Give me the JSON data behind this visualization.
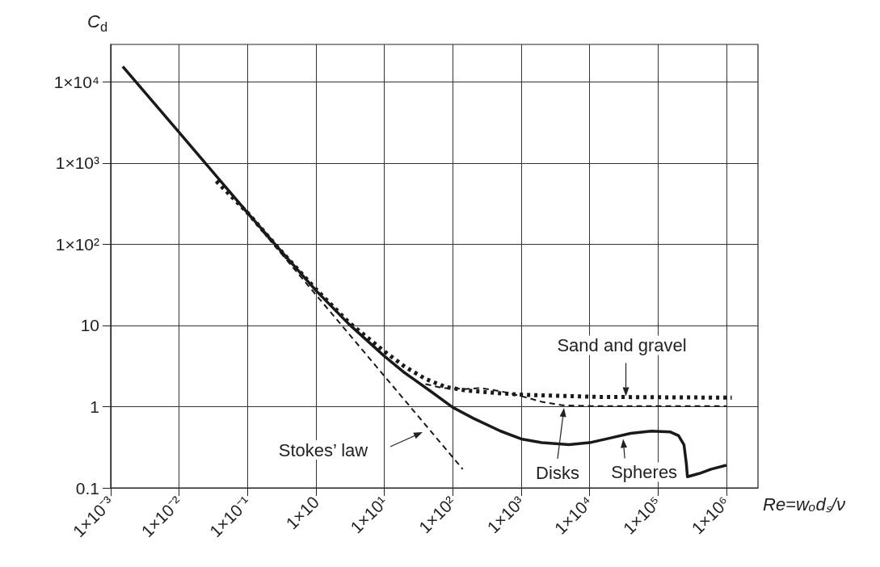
{
  "chart_data": {
    "type": "line",
    "xlabel": "Re=wₒdₛ/ν",
    "ylabel": "C$_{d}$",
    "log": "xy",
    "grid": true,
    "marker": "none",
    "xlim": [
      0.001,
      2900000
    ],
    "ylim": [
      0.1,
      29000
    ],
    "xticks": [
      {
        "value": 0.001,
        "label": "1×10⁻³"
      },
      {
        "value": 0.01,
        "label": "1×10⁻²"
      },
      {
        "value": 0.1,
        "label": "1×10⁻¹"
      },
      {
        "value": 1,
        "label": "1×10"
      },
      {
        "value": 10,
        "label": "1×10¹"
      },
      {
        "value": 100,
        "label": "1×10²"
      },
      {
        "value": 1000,
        "label": "1×10³"
      },
      {
        "value": 10000,
        "label": "1×10⁴"
      },
      {
        "value": 100000,
        "label": "1×10⁵"
      },
      {
        "value": 1000000,
        "label": "1×10⁶"
      }
    ],
    "yticks": [
      0.1,
      1,
      10,
      {
        "value": 100,
        "label": "1×10²"
      },
      {
        "value": 1000,
        "label": "1×10³"
      },
      {
        "value": 10000,
        "label": "1×10⁴"
      }
    ],
    "series": [
      {
        "color": "#1a1a1a",
        "line_style": "dashed",
        "x": [
          0.03,
          140
        ],
        "values": [
          800,
          0.17
        ]
      },
      {
        "color": "#1a1a1a",
        "line_style": "dotted",
        "x": [
          0.035,
          0.1,
          0.3,
          1,
          3,
          10,
          20,
          40,
          80,
          160,
          400,
          1100,
          13500,
          1200000
        ],
        "values": [
          600,
          245,
          85,
          28,
          11,
          4.8,
          3.1,
          2.2,
          1.74,
          1.58,
          1.48,
          1.4,
          1.32,
          1.29
        ]
      },
      {
        "color": "#1a1a1a",
        "line_style": "dashed",
        "x": [
          40,
          70,
          150,
          250,
          500,
          1000,
          2000,
          4000,
          10000,
          1000000
        ],
        "values": [
          1.9,
          1.7,
          1.65,
          1.7,
          1.55,
          1.35,
          1.15,
          1.04,
          1.02,
          1.02
        ]
      },
      {
        "color": "#1a1a1a",
        "line_style": "solid",
        "x": [
          0.0015,
          0.01,
          0.1,
          0.3,
          1,
          3,
          10,
          20,
          50,
          100,
          200,
          500,
          1000,
          2000,
          5000,
          10000,
          20000,
          40000,
          80000,
          150000,
          200000,
          240000,
          260000,
          270000,
          400000,
          600000,
          1000000
        ],
        "values": [
          15500,
          2400,
          245,
          85,
          27,
          10.5,
          4.2,
          2.6,
          1.5,
          0.98,
          0.72,
          0.5,
          0.4,
          0.36,
          0.34,
          0.36,
          0.41,
          0.47,
          0.5,
          0.49,
          0.44,
          0.34,
          0.2,
          0.137,
          0.15,
          0.17,
          0.19
        ]
      }
    ],
    "annotations": [
      "Stokes’ law",
      {
        "text": "Sand and gravel",
        "x": 34000,
        "y": 1.35
      },
      "Disks",
      {
        "text": "Spheres",
        "x": 31000,
        "y": 0.4
      }
    ]
  }
}
